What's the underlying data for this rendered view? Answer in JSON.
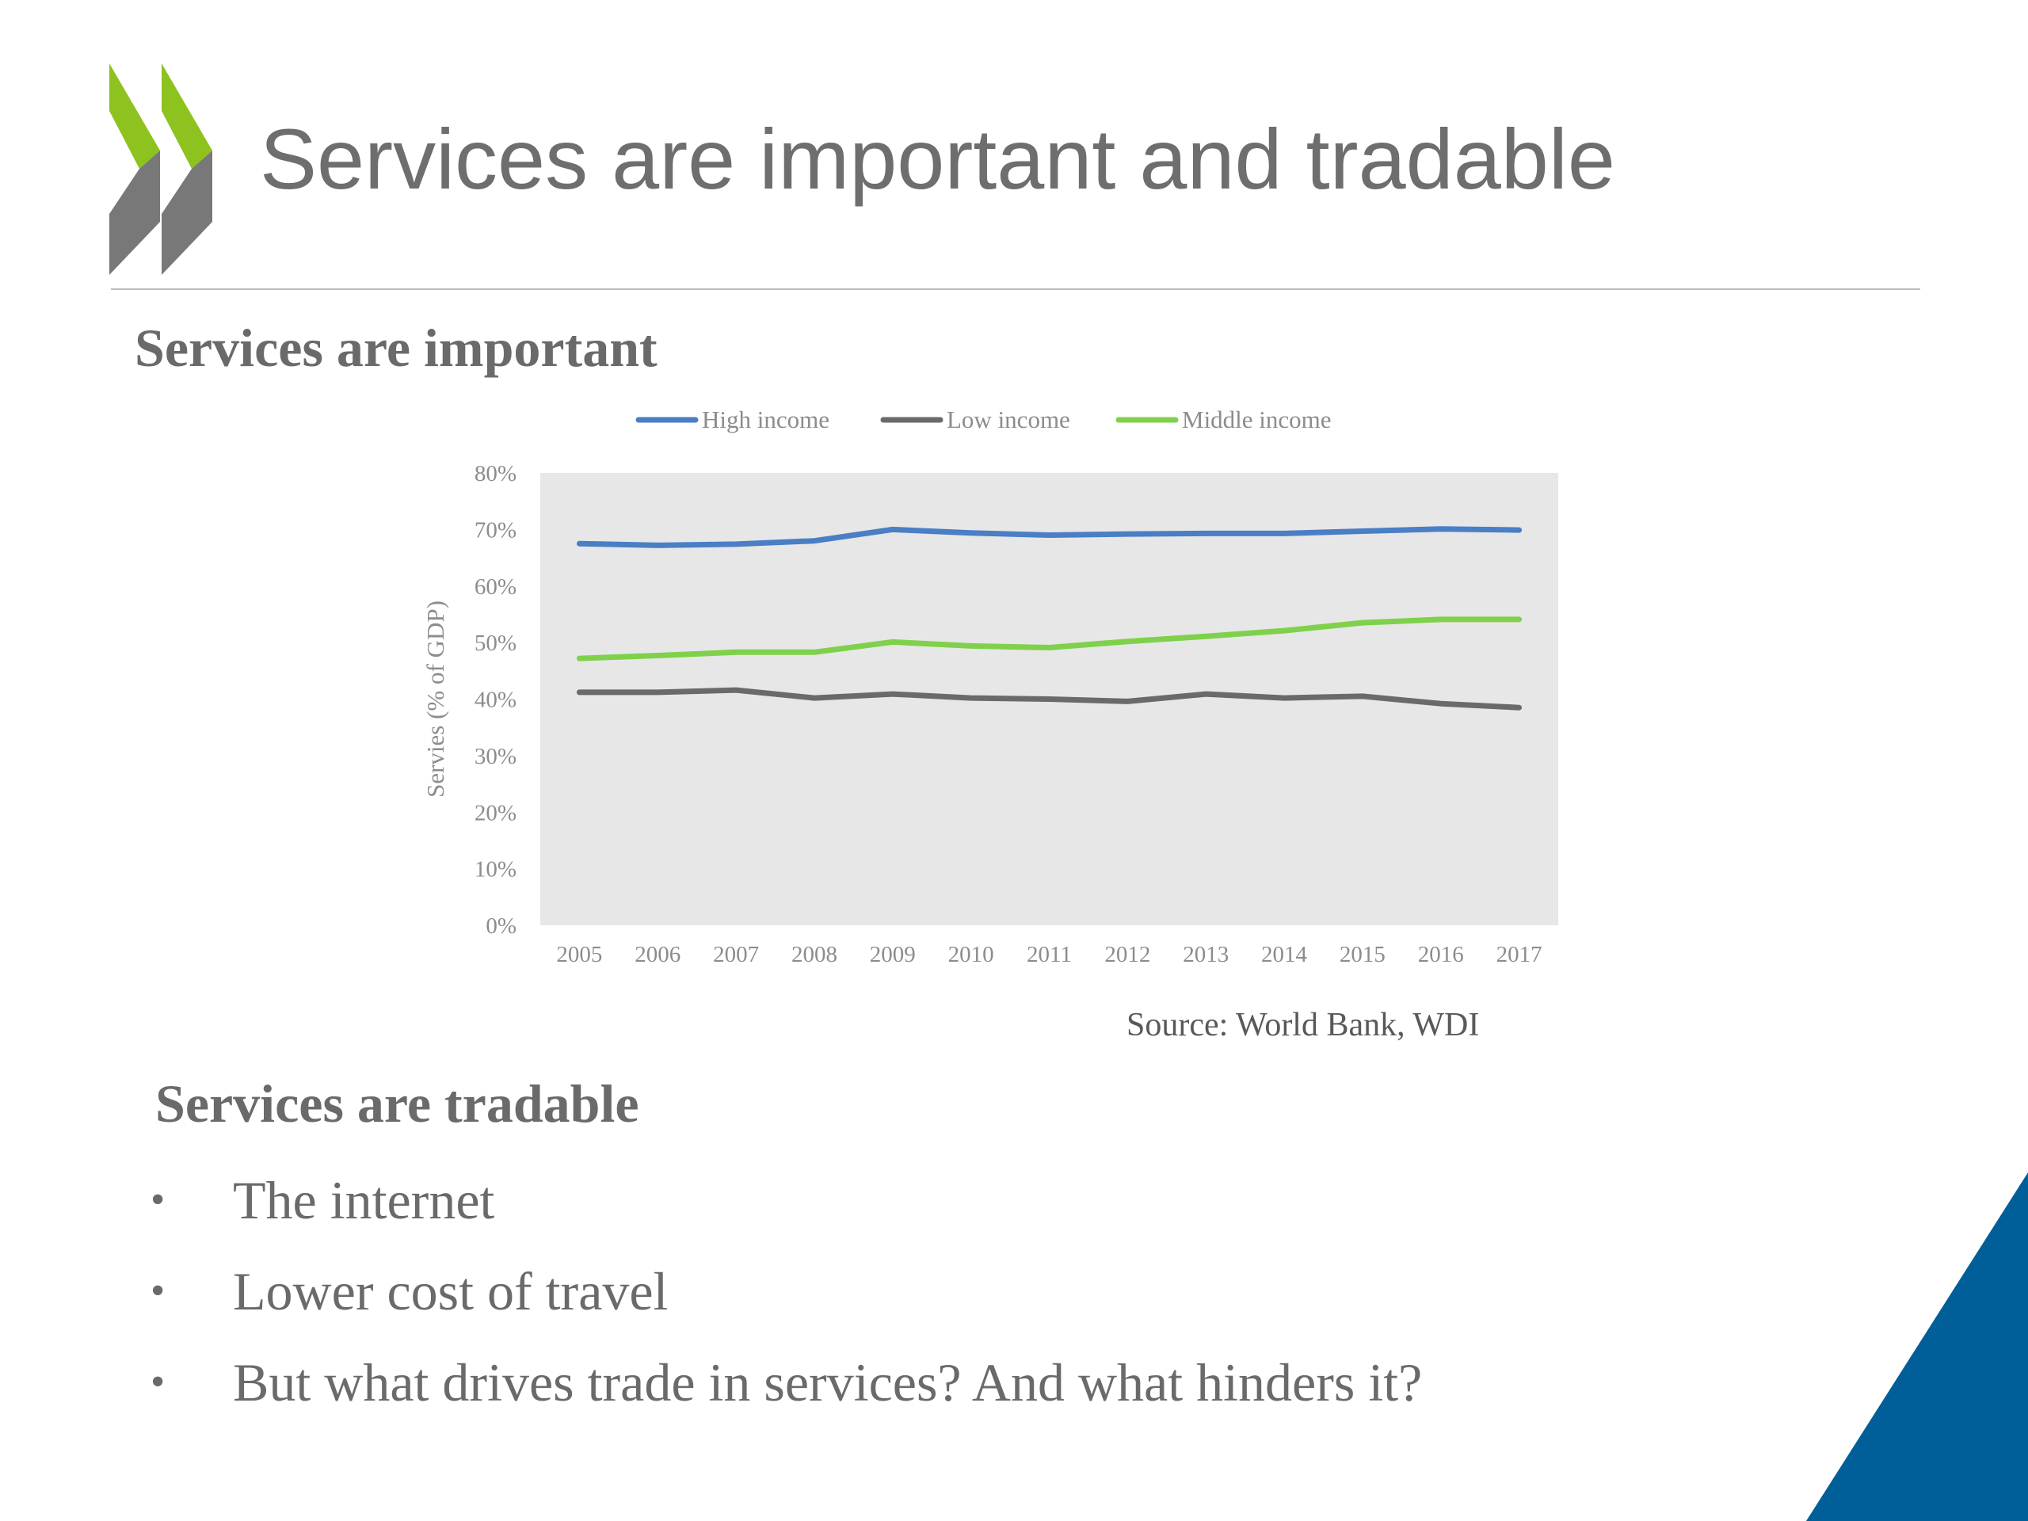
{
  "slide": {
    "title": "Services are important and tradable",
    "section_important": "Services are important",
    "section_tradable": "Services are tradable",
    "source": "Source: World Bank, WDI",
    "bullets": [
      "The internet",
      "Lower cost of travel",
      "But what drives trade in services? And what hinders it?"
    ],
    "colors": {
      "logo_green": "#8dc21f",
      "logo_gray": "#787878",
      "corner_blue": "#005f99",
      "text_gray": "#6a6a6a"
    }
  },
  "chart_data": {
    "type": "line",
    "categories": [
      "2005",
      "2006",
      "2007",
      "2008",
      "2009",
      "2010",
      "2011",
      "2012",
      "2013",
      "2014",
      "2015",
      "2016",
      "2017"
    ],
    "series": [
      {
        "name": "High income",
        "color": "#4a7ec5",
        "values": [
          67.5,
          67.2,
          67.4,
          68.0,
          70.0,
          69.4,
          69.0,
          69.2,
          69.3,
          69.3,
          69.7,
          70.1,
          69.9
        ]
      },
      {
        "name": "Low income",
        "color": "#6a6a6a",
        "values": [
          41.2,
          41.2,
          41.6,
          40.2,
          40.9,
          40.2,
          40.0,
          39.6,
          40.9,
          40.2,
          40.5,
          39.2,
          38.5
        ]
      },
      {
        "name": "Middle income",
        "color": "#7fd14b",
        "values": [
          47.2,
          47.7,
          48.3,
          48.3,
          50.1,
          49.4,
          49.1,
          50.2,
          51.1,
          52.1,
          53.5,
          54.1,
          54.1
        ]
      }
    ],
    "ylabel": "Servies  (% of GDP)",
    "xlabel": "",
    "ylim": [
      0,
      80
    ],
    "yticks": [
      "0%",
      "10%",
      "20%",
      "30%",
      "40%",
      "50%",
      "60%",
      "70%",
      "80%"
    ],
    "grid": false,
    "legend": "top"
  }
}
